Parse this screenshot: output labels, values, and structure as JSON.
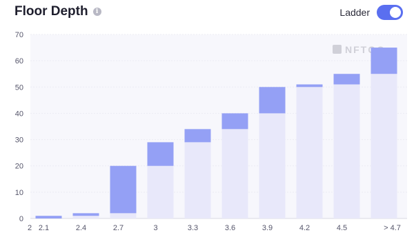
{
  "header": {
    "title": "Floor Depth",
    "info_icon": "info-icon",
    "ladder_label": "Ladder",
    "ladder_enabled": true
  },
  "watermark": "NFTGO",
  "colors": {
    "bar_top": "#94a0f5",
    "bar_base": "#e8e8fa",
    "plot_bg": "#f7f7fc",
    "toggle": "#5a6ff0",
    "tick_text": "#55556a"
  },
  "chart_data": {
    "type": "bar",
    "stacked": true,
    "categories": [
      "2.1",
      "2.4",
      "2.7",
      "3",
      "3.3",
      "3.6",
      "3.9",
      "4.2",
      "4.5",
      "> 4.7"
    ],
    "x_ticks": [
      "2",
      "2.1",
      "2.4",
      "2.7",
      "3",
      "3.3",
      "3.6",
      "3.9",
      "4.2",
      "4.5",
      "> 4.7"
    ],
    "series": [
      {
        "role": "base",
        "values": [
          0,
          1,
          2,
          20,
          29,
          34,
          40,
          50,
          51,
          55
        ]
      },
      {
        "role": "added",
        "values": [
          1,
          1,
          18,
          9,
          5,
          6,
          10,
          1,
          4,
          10
        ]
      }
    ],
    "totals": [
      1,
      2,
      20,
      29,
      34,
      40,
      50,
      51,
      55,
      65
    ],
    "ylim": [
      0,
      70
    ],
    "y_ticks": [
      0,
      10,
      20,
      30,
      40,
      50,
      60,
      70
    ],
    "grid": true,
    "title": "",
    "xlabel": "",
    "ylabel": ""
  }
}
